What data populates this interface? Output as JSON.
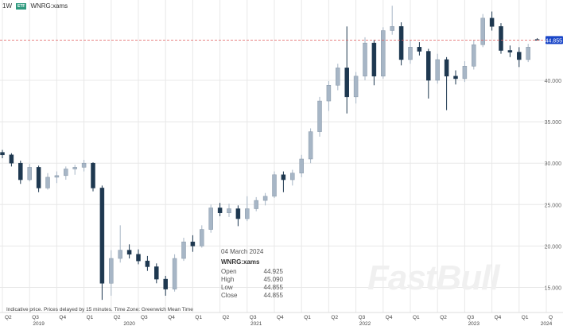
{
  "header": {
    "interval": "1W",
    "badge": "ETF",
    "symbol": "WNRG:xams"
  },
  "tooltip": {
    "date": "04 March 2024",
    "symbol": "WNRG:xams",
    "rows": [
      {
        "label": "Open",
        "value": "44.925"
      },
      {
        "label": "High",
        "value": "45.090"
      },
      {
        "label": "Low",
        "value": "44.855"
      },
      {
        "label": "Close",
        "value": "44.855"
      }
    ]
  },
  "footer_note": "Indicative price. Prices delayed by 15 minutes.   Time Zone: Greenwich Mean Time",
  "watermark": "FastBull",
  "colors": {
    "up": "#a7b6c6",
    "down": "#1e3850",
    "last_price": "#1a46c8",
    "last_line": "#e05a5a",
    "grid": "#e8e8e8"
  },
  "chart_data": {
    "type": "candlestick",
    "symbol": "WNRG:xams",
    "last_price": "44.855",
    "y_ticks": [
      "15.000",
      "20.000",
      "25.000",
      "30.000",
      "35.000",
      "40.000"
    ],
    "ylim": [
      12.8,
      50
    ],
    "x_ticks": [
      {
        "label": "Q2",
        "date": "2019-04"
      },
      {
        "label": "Q3",
        "date": "2019-07"
      },
      {
        "label": "Q4",
        "date": "2019-10"
      },
      {
        "label": "Q1",
        "date": "2020-01"
      },
      {
        "label": "Q2",
        "date": "2020-04"
      },
      {
        "label": "Q3",
        "date": "2020-07"
      },
      {
        "label": "Q4",
        "date": "2020-10"
      },
      {
        "label": "Q1",
        "date": "2021-01"
      },
      {
        "label": "Q2",
        "date": "2021-04"
      },
      {
        "label": "Q3",
        "date": "2021-07"
      },
      {
        "label": "Q4",
        "date": "2021-10"
      },
      {
        "label": "Q1",
        "date": "2022-01"
      },
      {
        "label": "Q2",
        "date": "2022-04"
      },
      {
        "label": "Q3",
        "date": "2022-07"
      },
      {
        "label": "Q4",
        "date": "2022-10"
      },
      {
        "label": "Q1",
        "date": "2023-01"
      },
      {
        "label": "Q2",
        "date": "2023-04"
      },
      {
        "label": "Q3",
        "date": "2023-07"
      },
      {
        "label": "Q4",
        "date": "2023-10"
      },
      {
        "label": "Q1",
        "date": "2024-01"
      },
      {
        "label": "Q",
        "date": "2024-04"
      }
    ],
    "year_labels": [
      {
        "label": "2019",
        "date": "2019-08"
      },
      {
        "label": "2020",
        "date": "2020-06"
      },
      {
        "label": "2021",
        "date": "2021-08"
      },
      {
        "label": "2022",
        "date": "2022-08"
      },
      {
        "label": "2023",
        "date": "2023-08"
      },
      {
        "label": "2024",
        "date": "2024-04"
      }
    ],
    "candles": [
      [
        "2019-04",
        31.3,
        31.6,
        30.6,
        31.0
      ],
      [
        "2019-05",
        31.0,
        31.2,
        29.6,
        30.0
      ],
      [
        "2019-06",
        30.0,
        30.3,
        27.5,
        28.0
      ],
      [
        "2019-07",
        28.0,
        29.9,
        27.8,
        29.5
      ],
      [
        "2019-08",
        29.5,
        29.7,
        26.5,
        27.0
      ],
      [
        "2019-09",
        27.0,
        28.8,
        26.8,
        28.3
      ],
      [
        "2019-10",
        28.3,
        29.0,
        27.6,
        28.5
      ],
      [
        "2019-11",
        28.5,
        29.6,
        28.0,
        29.3
      ],
      [
        "2019-12",
        29.3,
        29.8,
        28.6,
        29.5
      ],
      [
        "2020-01",
        29.5,
        30.4,
        29.0,
        30.0
      ],
      [
        "2020-02",
        30.0,
        30.1,
        26.6,
        27.0
      ],
      [
        "2020-03",
        27.0,
        27.3,
        13.5,
        15.5
      ],
      [
        "2020-04",
        15.5,
        19.5,
        14.0,
        18.5
      ],
      [
        "2020-05",
        18.5,
        22.5,
        18.0,
        19.5
      ],
      [
        "2020-06",
        19.5,
        20.2,
        18.5,
        19.0
      ],
      [
        "2020-07",
        19.0,
        19.6,
        17.8,
        18.2
      ],
      [
        "2020-08",
        18.2,
        18.8,
        17.0,
        17.5
      ],
      [
        "2020-09",
        17.5,
        17.9,
        15.5,
        16.0
      ],
      [
        "2020-10",
        16.0,
        16.4,
        14.0,
        14.8
      ],
      [
        "2020-11",
        14.8,
        19.0,
        14.5,
        18.5
      ],
      [
        "2020-12",
        18.5,
        21.0,
        18.2,
        20.5
      ],
      [
        "2021-01",
        20.5,
        21.3,
        19.3,
        20.0
      ],
      [
        "2021-02",
        20.0,
        22.5,
        19.8,
        22.0
      ],
      [
        "2021-03",
        22.0,
        25.0,
        21.6,
        24.6
      ],
      [
        "2021-04",
        24.6,
        25.2,
        23.6,
        24.0
      ],
      [
        "2021-05",
        24.0,
        25.1,
        23.5,
        24.5
      ],
      [
        "2021-06",
        24.5,
        24.9,
        22.4,
        23.3
      ],
      [
        "2021-07",
        23.3,
        26.0,
        23.0,
        24.5
      ],
      [
        "2021-08",
        24.5,
        25.9,
        24.2,
        25.5
      ],
      [
        "2021-09",
        25.5,
        26.4,
        24.9,
        26.0
      ],
      [
        "2021-10",
        26.0,
        29.0,
        25.8,
        28.6
      ],
      [
        "2021-11",
        28.6,
        29.0,
        26.5,
        28.0
      ],
      [
        "2021-12",
        28.0,
        29.2,
        27.3,
        28.8
      ],
      [
        "2022-01",
        28.8,
        31.0,
        28.3,
        30.5
      ],
      [
        "2022-02",
        30.5,
        34.2,
        30.0,
        33.8
      ],
      [
        "2022-03",
        33.8,
        38.0,
        33.2,
        37.5
      ],
      [
        "2022-04",
        37.5,
        39.9,
        36.3,
        39.4
      ],
      [
        "2022-05",
        39.4,
        42.0,
        38.8,
        41.5
      ],
      [
        "2022-06",
        41.5,
        46.5,
        36.0,
        38.0
      ],
      [
        "2022-07",
        38.0,
        41.0,
        37.2,
        40.5
      ],
      [
        "2022-08",
        40.5,
        45.2,
        40.0,
        44.5
      ],
      [
        "2022-09",
        44.5,
        44.9,
        39.4,
        40.5
      ],
      [
        "2022-10",
        40.5,
        46.4,
        40.2,
        46.0
      ],
      [
        "2022-11",
        46.0,
        49.0,
        45.5,
        46.5
      ],
      [
        "2022-12",
        46.5,
        47.0,
        41.8,
        42.5
      ],
      [
        "2023-01",
        42.5,
        44.9,
        42.0,
        44.0
      ],
      [
        "2023-02",
        44.0,
        44.6,
        43.0,
        43.5
      ],
      [
        "2023-03",
        43.5,
        43.8,
        37.8,
        40.0
      ],
      [
        "2023-04",
        40.0,
        43.2,
        39.6,
        42.5
      ],
      [
        "2023-05",
        42.5,
        42.8,
        36.4,
        40.5
      ],
      [
        "2023-06",
        40.5,
        41.2,
        39.5,
        40.2
      ],
      [
        "2023-07",
        40.2,
        42.3,
        39.8,
        41.7
      ],
      [
        "2023-08",
        41.7,
        44.8,
        41.3,
        44.3
      ],
      [
        "2023-09",
        44.3,
        48.0,
        44.0,
        47.5
      ],
      [
        "2023-10",
        47.5,
        48.3,
        46.0,
        46.5
      ],
      [
        "2023-11",
        46.5,
        46.9,
        43.2,
        43.6
      ],
      [
        "2023-12",
        43.6,
        44.2,
        42.8,
        43.4
      ],
      [
        "2024-01",
        43.4,
        44.0,
        41.6,
        42.5
      ],
      [
        "2024-02",
        42.5,
        44.4,
        42.2,
        44.0
      ],
      [
        "2024-03",
        44.925,
        45.09,
        44.855,
        44.855
      ]
    ]
  }
}
